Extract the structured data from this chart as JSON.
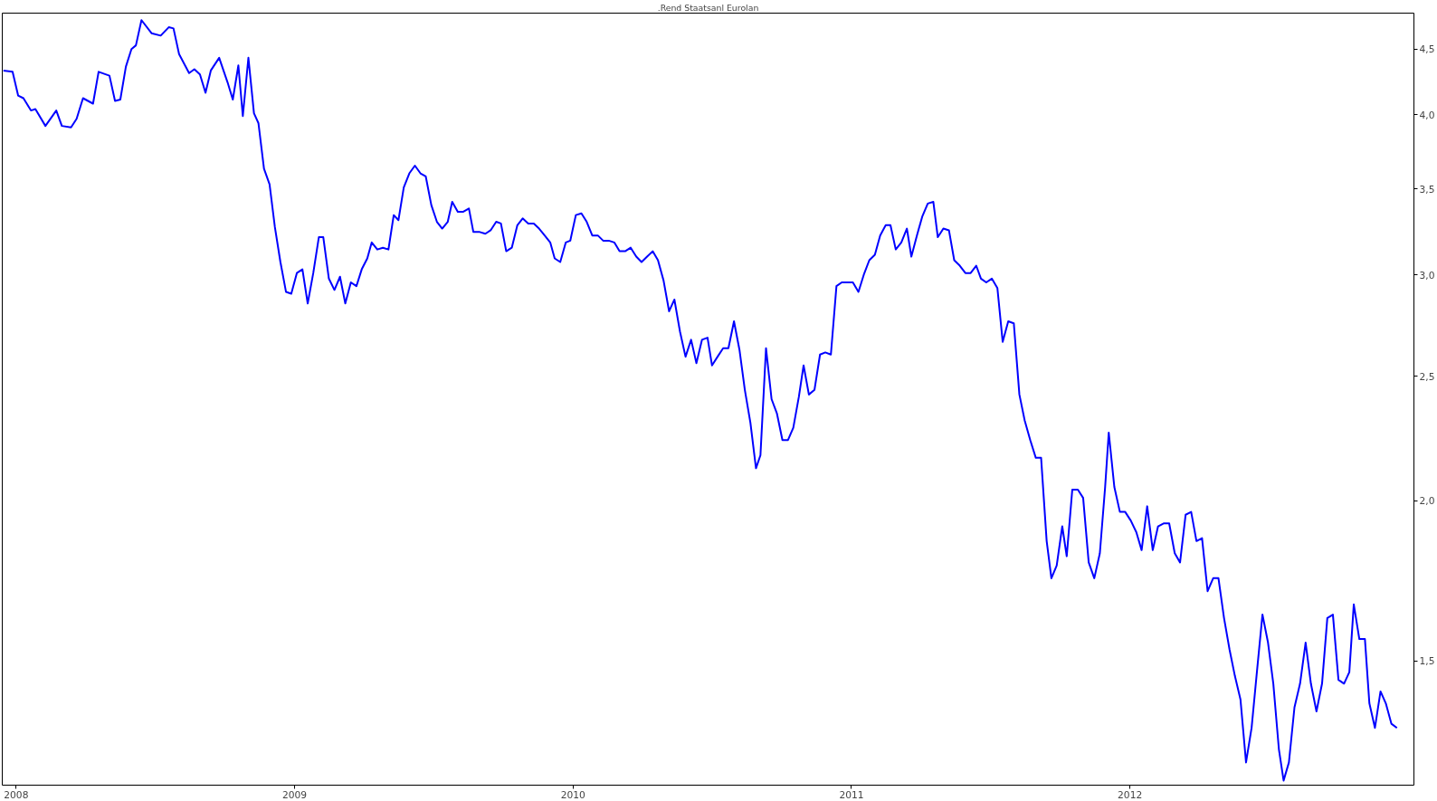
{
  "chart_data": {
    "type": "line",
    "title": ".Rend Staatsanl Eurolan",
    "log": "y",
    "grid": false,
    "line_style": "solid",
    "xlim": [
      2007.95,
      2013.02
    ],
    "xticks": [
      2008,
      2009,
      2010,
      2011,
      2012
    ],
    "ylim": [
      1.2,
      4.8
    ],
    "yticks": [
      {
        "value": 1.5,
        "label": "1,5"
      },
      {
        "value": 2.0,
        "label": "2,0"
      },
      {
        "value": 2.5,
        "label": "2,5"
      },
      {
        "value": 3.0,
        "label": "3,0"
      },
      {
        "value": 3.5,
        "label": "3,5"
      },
      {
        "value": 4.0,
        "label": "4,0"
      },
      {
        "value": 4.5,
        "label": "4,5"
      }
    ],
    "x": [
      2007.954,
      2007.987,
      2008.007,
      2008.026,
      2008.053,
      2008.069,
      2008.105,
      2008.144,
      2008.164,
      2008.197,
      2008.217,
      2008.24,
      2008.276,
      2008.296,
      2008.335,
      2008.355,
      2008.374,
      2008.394,
      2008.414,
      2008.43,
      2008.45,
      2008.486,
      2008.519,
      2008.548,
      2008.565,
      2008.585,
      2008.621,
      2008.64,
      2008.66,
      2008.68,
      2008.699,
      2008.729,
      2008.759,
      2008.778,
      2008.798,
      2008.814,
      2008.834,
      2008.854,
      2008.87,
      2008.89,
      2008.91,
      2008.929,
      2008.949,
      2008.969,
      2008.988,
      2009.008,
      2009.028,
      2009.047,
      2009.067,
      2009.087,
      2009.103,
      2009.123,
      2009.143,
      2009.163,
      2009.182,
      2009.202,
      2009.222,
      2009.241,
      2009.261,
      2009.277,
      2009.297,
      2009.317,
      2009.337,
      2009.356,
      2009.373,
      2009.392,
      2009.412,
      2009.432,
      2009.452,
      2009.471,
      2009.491,
      2009.511,
      2009.53,
      2009.55,
      2009.566,
      2009.586,
      2009.606,
      2009.626,
      2009.642,
      2009.665,
      2009.685,
      2009.704,
      2009.724,
      2009.741,
      2009.76,
      2009.78,
      2009.8,
      2009.819,
      2009.839,
      2009.859,
      2009.878,
      2009.898,
      2009.918,
      2009.934,
      2009.954,
      2009.974,
      2009.99,
      2010.01,
      2010.03,
      2010.049,
      2010.069,
      2010.089,
      2010.108,
      2010.128,
      2010.148,
      2010.167,
      2010.187,
      2010.207,
      2010.227,
      2010.246,
      2010.266,
      2010.286,
      2010.305,
      2010.325,
      2010.345,
      2010.364,
      2010.384,
      2010.404,
      2010.424,
      2010.443,
      2010.463,
      2010.483,
      2010.499,
      2010.519,
      2010.539,
      2010.558,
      2010.578,
      2010.598,
      2010.617,
      2010.637,
      2010.657,
      2010.673,
      2010.693,
      2010.713,
      2010.732,
      2010.752,
      2010.772,
      2010.791,
      2010.811,
      2010.828,
      2010.847,
      2010.867,
      2010.887,
      2010.906,
      2010.926,
      2010.946,
      2010.965,
      2010.985,
      2011.005,
      2011.025,
      2011.044,
      2011.064,
      2011.084,
      2011.103,
      2011.123,
      2011.14,
      2011.159,
      2011.179,
      2011.199,
      2011.215,
      2011.235,
      2011.254,
      2011.274,
      2011.294,
      2011.31,
      2011.33,
      2011.35,
      2011.369,
      2011.389,
      2011.409,
      2011.428,
      2011.448,
      2011.465,
      2011.484,
      2011.504,
      2011.524,
      2011.543,
      2011.563,
      2011.583,
      2011.603,
      2011.622,
      2011.642,
      2011.662,
      2011.681,
      2011.701,
      2011.718,
      2011.737,
      2011.757,
      2011.773,
      2011.793,
      2011.813,
      2011.832,
      2011.852,
      2011.872,
      2011.892,
      2011.911,
      2011.924,
      2011.944,
      2011.964,
      2011.983,
      2012.003,
      2012.023,
      2012.042,
      2012.062,
      2012.082,
      2012.101,
      2012.121,
      2012.141,
      2012.161,
      2012.18,
      2012.2,
      2012.22,
      2012.239,
      2012.259,
      2012.279,
      2012.299,
      2012.318,
      2012.338,
      2012.358,
      2012.377,
      2012.397,
      2012.417,
      2012.437,
      2012.456,
      2012.476,
      2012.496,
      2012.515,
      2012.535,
      2012.552,
      2012.571,
      2012.591,
      2012.611,
      2012.631,
      2012.65,
      2012.67,
      2012.69,
      2012.709,
      2012.729,
      2012.749,
      2012.769,
      2012.788,
      2012.804,
      2012.824,
      2012.844,
      2012.86,
      2012.88,
      2012.9,
      2012.919,
      2012.939,
      2012.959
    ],
    "series": [
      {
        "color": "#0000ff",
        "values": [
          4.33,
          4.32,
          4.14,
          4.12,
          4.03,
          4.04,
          3.92,
          4.03,
          3.92,
          3.91,
          3.97,
          4.12,
          4.08,
          4.32,
          4.29,
          4.1,
          4.11,
          4.36,
          4.5,
          4.53,
          4.74,
          4.63,
          4.61,
          4.68,
          4.67,
          4.46,
          4.31,
          4.34,
          4.3,
          4.16,
          4.33,
          4.43,
          4.24,
          4.11,
          4.37,
          3.99,
          4.43,
          4.01,
          3.94,
          3.63,
          3.53,
          3.27,
          3.07,
          2.91,
          2.9,
          3.01,
          3.03,
          2.85,
          3.01,
          3.21,
          3.21,
          2.98,
          2.92,
          2.99,
          2.85,
          2.96,
          2.94,
          3.03,
          3.09,
          3.18,
          3.14,
          3.15,
          3.14,
          3.34,
          3.31,
          3.51,
          3.6,
          3.65,
          3.6,
          3.58,
          3.4,
          3.3,
          3.26,
          3.3,
          3.42,
          3.36,
          3.36,
          3.38,
          3.24,
          3.24,
          3.23,
          3.25,
          3.3,
          3.29,
          3.13,
          3.15,
          3.28,
          3.32,
          3.29,
          3.29,
          3.26,
          3.22,
          3.18,
          3.09,
          3.07,
          3.18,
          3.19,
          3.34,
          3.35,
          3.3,
          3.22,
          3.22,
          3.19,
          3.19,
          3.18,
          3.13,
          3.13,
          3.15,
          3.1,
          3.07,
          3.1,
          3.13,
          3.08,
          2.97,
          2.81,
          2.87,
          2.71,
          2.59,
          2.67,
          2.56,
          2.67,
          2.68,
          2.55,
          2.59,
          2.63,
          2.63,
          2.76,
          2.62,
          2.44,
          2.3,
          2.12,
          2.17,
          2.63,
          2.4,
          2.34,
          2.23,
          2.23,
          2.28,
          2.41,
          2.55,
          2.42,
          2.44,
          2.6,
          2.61,
          2.6,
          2.94,
          2.96,
          2.96,
          2.96,
          2.91,
          3.0,
          3.08,
          3.11,
          3.22,
          3.28,
          3.28,
          3.14,
          3.18,
          3.26,
          3.1,
          3.22,
          3.33,
          3.41,
          3.42,
          3.21,
          3.26,
          3.25,
          3.08,
          3.05,
          3.01,
          3.01,
          3.05,
          2.98,
          2.96,
          2.98,
          2.93,
          2.66,
          2.76,
          2.75,
          2.42,
          2.31,
          2.23,
          2.16,
          2.16,
          1.86,
          1.74,
          1.78,
          1.91,
          1.81,
          2.04,
          2.04,
          2.01,
          1.79,
          1.74,
          1.82,
          2.05,
          2.26,
          2.05,
          1.96,
          1.96,
          1.93,
          1.89,
          1.83,
          1.98,
          1.83,
          1.91,
          1.92,
          1.92,
          1.82,
          1.79,
          1.95,
          1.96,
          1.86,
          1.87,
          1.7,
          1.74,
          1.74,
          1.62,
          1.53,
          1.46,
          1.4,
          1.25,
          1.33,
          1.47,
          1.63,
          1.55,
          1.44,
          1.28,
          1.21,
          1.25,
          1.38,
          1.44,
          1.55,
          1.44,
          1.37,
          1.44,
          1.62,
          1.63,
          1.45,
          1.44,
          1.47,
          1.66,
          1.56,
          1.56,
          1.39,
          1.33,
          1.42,
          1.39,
          1.34,
          1.33
        ]
      }
    ]
  }
}
